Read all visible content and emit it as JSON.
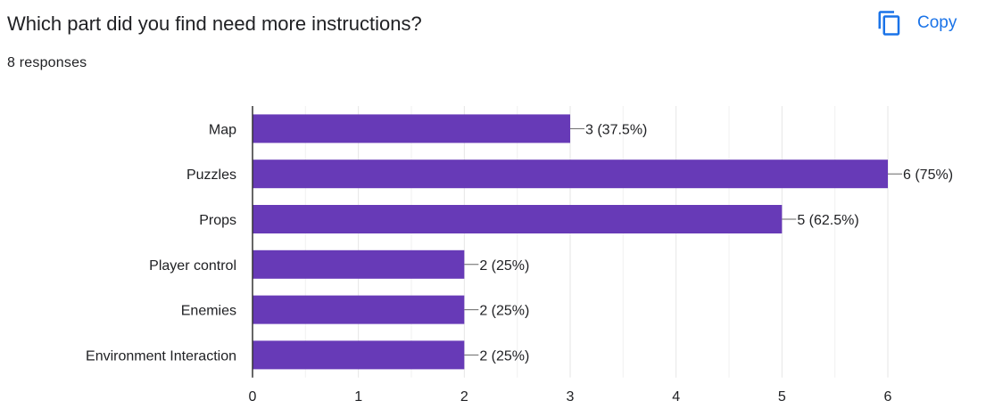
{
  "question": "Which part did you find need more instructions?",
  "responses": "8 responses",
  "copy_label": "Copy",
  "colors": {
    "bar": "#673ab7",
    "accent": "#1a73e8",
    "grid": "#e6e6e6",
    "axis": "#333333"
  },
  "icons": {
    "copy": "copy-icon"
  },
  "chart_data": {
    "type": "bar",
    "orientation": "horizontal",
    "categories": [
      "Map",
      "Puzzles",
      "Props",
      "Player control",
      "Enemies",
      "Environment Interaction"
    ],
    "values": [
      3,
      6,
      5,
      2,
      2,
      2
    ],
    "data_labels": [
      "3 (37.5%)",
      "6 (75%)",
      "5 (62.5%)",
      "2 (25%)",
      "2 (25%)",
      "2 (25%)"
    ],
    "xlim": [
      0,
      6
    ],
    "xticks": [
      0,
      1,
      2,
      3,
      4,
      5,
      6
    ],
    "minor_gridlines": true,
    "legend": "none"
  }
}
